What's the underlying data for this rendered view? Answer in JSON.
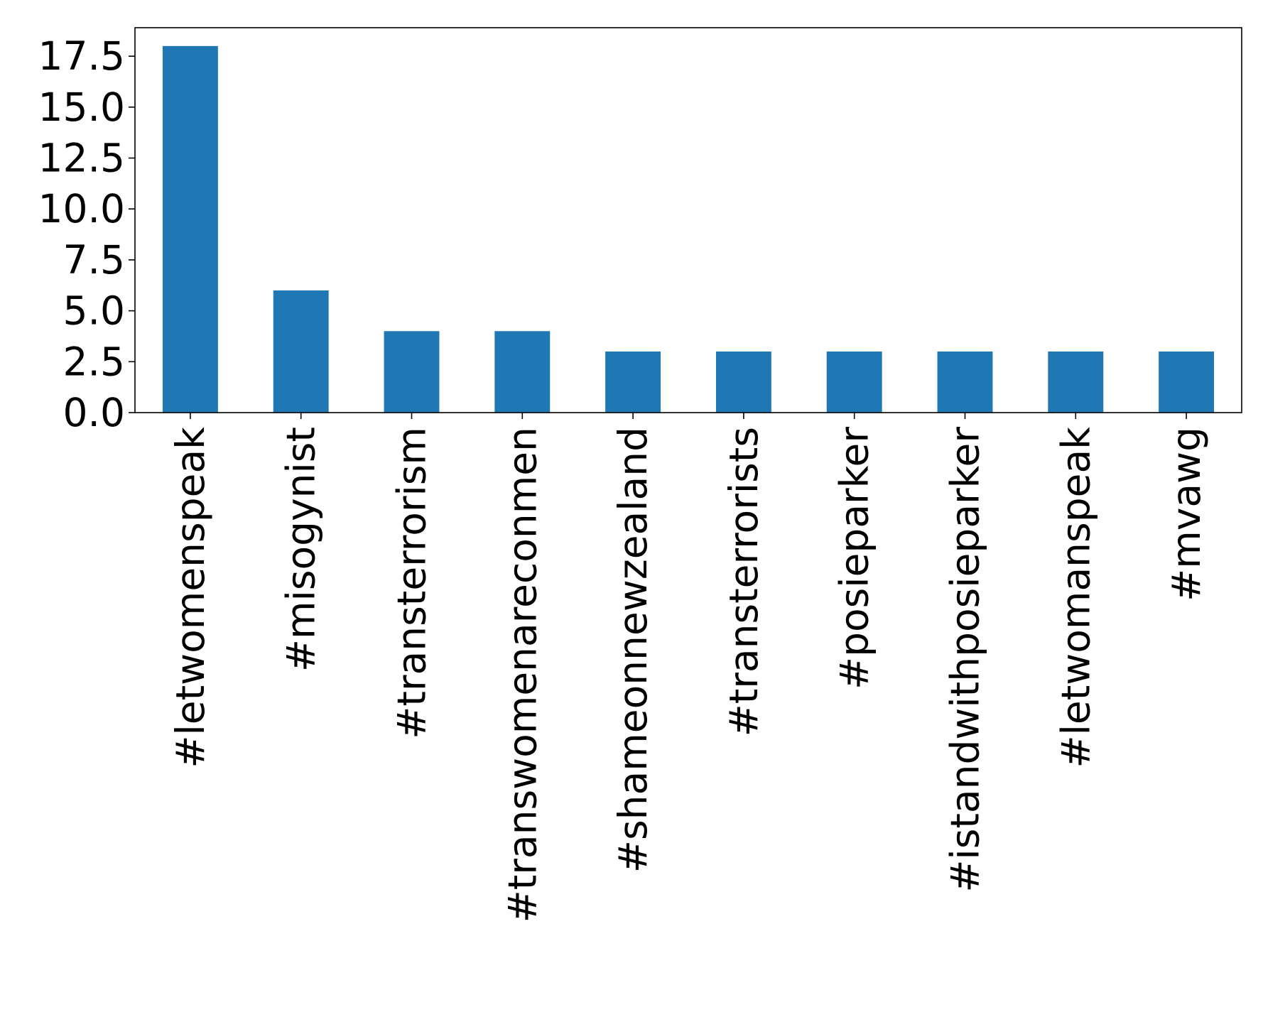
{
  "chart_data": {
    "type": "bar",
    "title": "",
    "xlabel": "",
    "ylabel": "",
    "categories": [
      "#letwomenspeak",
      "#misogynist",
      "#transterrorism",
      "#transwomenareconmen",
      "#shameonnewzealand",
      "#transterrorists",
      "#posieparker",
      "#istandwithposieparker",
      "#letwomanspeak",
      "#mvawg"
    ],
    "values": [
      18,
      6,
      4,
      4,
      3,
      3,
      3,
      3,
      3,
      3
    ],
    "ylim": [
      0,
      18.9
    ],
    "yticks": [
      0.0,
      2.5,
      5.0,
      7.5,
      10.0,
      12.5,
      15.0,
      17.5
    ],
    "ytick_labels": [
      "0.0",
      "2.5",
      "5.0",
      "7.5",
      "10.0",
      "12.5",
      "15.0",
      "17.5"
    ],
    "bar_color": "#1f77b4",
    "grid": false,
    "legend": "none"
  }
}
